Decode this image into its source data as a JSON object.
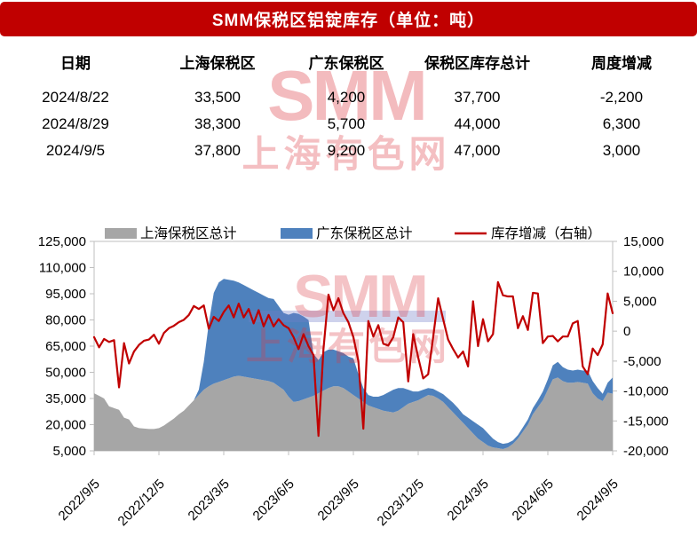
{
  "banner": {
    "title": "SMM保税区铝锭库存（单位：吨）",
    "bg_color": "#C00000",
    "text_color": "#FFFFFF"
  },
  "watermark": {
    "logo_text": "SMM",
    "site_text": "上海有色网"
  },
  "table": {
    "headers": [
      "日期",
      "上海保税区",
      "广东保税区",
      "保税区库存总计",
      "周度增减"
    ],
    "rows": [
      [
        "2024/8/22",
        "33,500",
        "4,200",
        "37,700",
        "-2,200"
      ],
      [
        "2024/8/29",
        "38,300",
        "5,700",
        "44,000",
        "6,300"
      ],
      [
        "2024/9/5",
        "37,800",
        "9,200",
        "47,000",
        "3,000"
      ]
    ]
  },
  "chart_data": {
    "type": "combo stacked-area + line",
    "frequency": "weekly",
    "x_start": "2022/9/5",
    "x_end": "2024/9/5",
    "x_tick_labels": [
      "2022/9/5",
      "2022/12/5",
      "2023/3/5",
      "2023/6/5",
      "2023/9/5",
      "2023/12/5",
      "2024/3/5",
      "2024/6/5",
      "2024/9/5"
    ],
    "left_axis": {
      "min": 5000,
      "max": 125000,
      "tick_labels": [
        "125,000",
        "110,000",
        "95,000",
        "80,000",
        "65,000",
        "50,000",
        "35,000",
        "20,000",
        "5,000"
      ]
    },
    "right_axis": {
      "min": -20000,
      "max": 15000,
      "tick_labels": [
        "15,000",
        "10,000",
        "5,000",
        "0",
        "-5,000",
        "-10,000",
        "-15,000",
        "-20,000"
      ]
    },
    "grid": false,
    "legend_position": "top",
    "colors": {
      "shanghai": "#A6A6A6",
      "guangdong": "#4E81BD",
      "change_line": "#C00000",
      "axis": "#BFBFBF"
    },
    "series": [
      {
        "name": "上海保税区总计",
        "type": "area",
        "axis": "left",
        "color": "#A6A6A6",
        "values": [
          38000,
          36500,
          35000,
          30500,
          29500,
          28500,
          24000,
          23000,
          19000,
          18000,
          17800,
          17500,
          17500,
          18000,
          19500,
          21500,
          23500,
          26000,
          28000,
          31000,
          34000,
          37000,
          40000,
          42000,
          43500,
          44500,
          45500,
          46500,
          47500,
          48000,
          47500,
          47000,
          46500,
          46000,
          45500,
          45000,
          44000,
          42000,
          40000,
          36000,
          33000,
          33500,
          34500,
          35500,
          36500,
          38000,
          39500,
          41000,
          42000,
          42000,
          41000,
          39000,
          37000,
          35000,
          33000,
          31000,
          30000,
          29000,
          28000,
          27500,
          27000,
          28000,
          30000,
          32000,
          33000,
          34000,
          35500,
          37000,
          36500,
          35000,
          33000,
          30000,
          27000,
          24000,
          21000,
          18000,
          15000,
          12000,
          10000,
          8000,
          7000,
          6500,
          6000,
          7000,
          9000,
          12000,
          16000,
          20000,
          26000,
          30000,
          34000,
          40000,
          46000,
          47000,
          45000,
          44000,
          44000,
          44500,
          44000,
          43500,
          38000,
          35000,
          33500,
          38300,
          37800
        ]
      },
      {
        "name": "广东保税区总计",
        "type": "area",
        "axis": "left",
        "stacked_on": "上海保税区总计",
        "color": "#4E81BD",
        "values": [
          0,
          0,
          0,
          0,
          0,
          0,
          0,
          0,
          0,
          0,
          0,
          0,
          0,
          0,
          0,
          0,
          0,
          0,
          0,
          0,
          0,
          3000,
          16000,
          36000,
          52000,
          57000,
          58000,
          56500,
          55000,
          53500,
          52500,
          51500,
          50500,
          49500,
          48500,
          47500,
          48000,
          46000,
          44000,
          47000,
          51000,
          50000,
          47500,
          44500,
          24000,
          19000,
          22000,
          22000,
          21000,
          20000,
          20000,
          20000,
          21000,
          14000,
          8000,
          6000,
          6000,
          7000,
          9000,
          11000,
          13000,
          13000,
          11000,
          8000,
          6000,
          5000,
          4500,
          4000,
          4000,
          4000,
          4500,
          5000,
          5500,
          5500,
          5000,
          6000,
          7000,
          8000,
          8000,
          7000,
          5000,
          3500,
          3000,
          2500,
          2000,
          2000,
          2500,
          3000,
          3500,
          4000,
          5000,
          6000,
          8000,
          9000,
          8000,
          7500,
          7000,
          7000,
          7000,
          7500,
          7000,
          6000,
          4200,
          5700,
          9200
        ]
      },
      {
        "name": "库存增减（右轴）",
        "type": "line",
        "axis": "right",
        "color": "#C00000",
        "values": [
          -1000,
          -2700,
          -1300,
          -1800,
          -1500,
          -9400,
          -2000,
          -5400,
          -3400,
          -2300,
          -1600,
          -1400,
          -600,
          -2100,
          -300,
          500,
          900,
          1500,
          1900,
          2700,
          4200,
          3700,
          4300,
          400,
          2400,
          1700,
          3200,
          4300,
          2300,
          4600,
          2300,
          3700,
          1300,
          3500,
          800,
          2700,
          800,
          2000,
          1000,
          500,
          -1000,
          -3000,
          -500,
          -2500,
          -4000,
          -17500,
          -3000,
          6100,
          3500,
          5500,
          3000,
          1500,
          -1000,
          -5000,
          -16300,
          1700,
          -900,
          1000,
          -2100,
          -2400,
          -1000,
          2300,
          1500,
          -8400,
          -500,
          -4400,
          -7900,
          -7200,
          -1000,
          5500,
          2000,
          -1400,
          -3000,
          -4400,
          -3400,
          -5900,
          5000,
          -2500,
          2000,
          -1700,
          -500,
          8200,
          6000,
          5800,
          5800,
          500,
          2500,
          200,
          6400,
          6300,
          -2000,
          -900,
          -800,
          -1700,
          -900,
          -900,
          1300,
          1700,
          -5900,
          -7200,
          -2900,
          -4000,
          -2200,
          6300,
          3000
        ]
      }
    ]
  }
}
